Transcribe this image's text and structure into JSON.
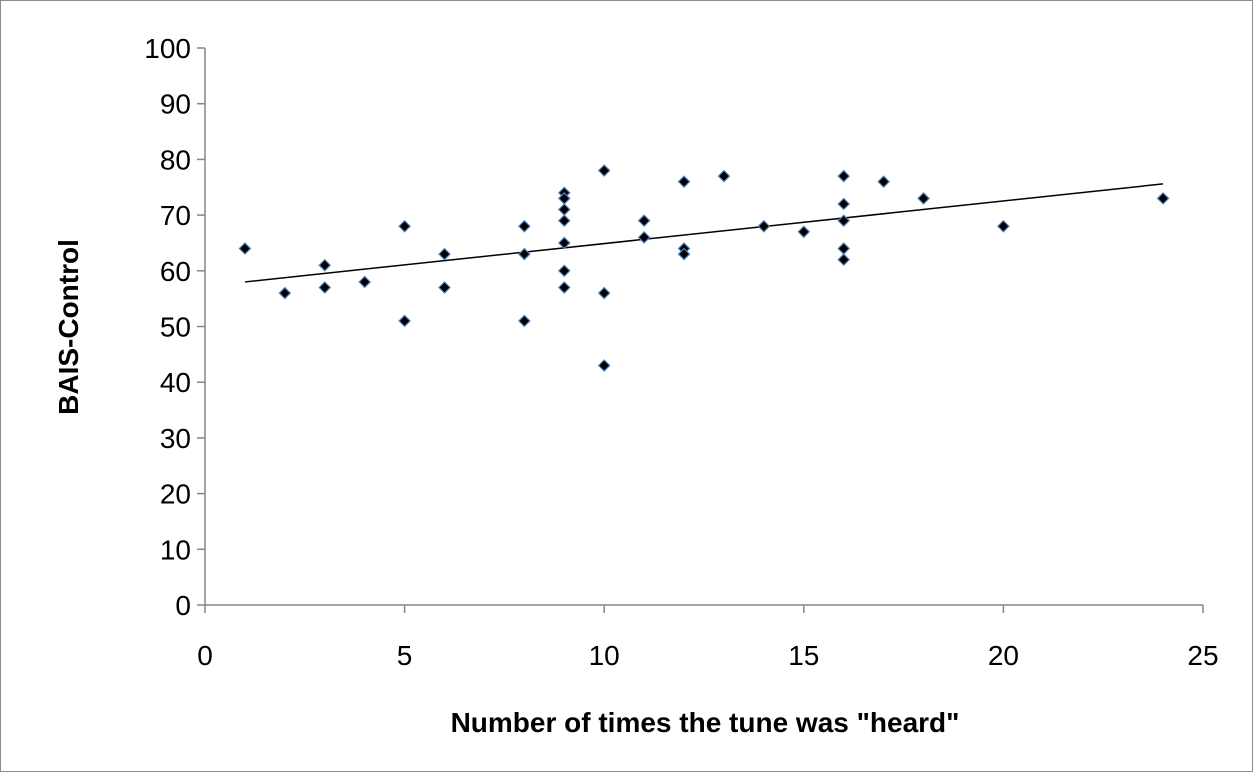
{
  "chart_data": {
    "type": "scatter",
    "xlabel": "Number of times the tune was \"heard\"",
    "ylabel": "BAIS-Control",
    "xlim": [
      0,
      25
    ],
    "ylim": [
      0,
      100
    ],
    "xticks": [
      0,
      5,
      10,
      15,
      20,
      25
    ],
    "yticks": [
      0,
      10,
      20,
      30,
      40,
      50,
      60,
      70,
      80,
      90,
      100
    ],
    "grid": false,
    "legend": "none",
    "marker": "diamond",
    "marker_color": "#000000",
    "marker_edge_color": "#4f81bd",
    "trendline": {
      "type": "linear",
      "x": [
        1,
        24
      ],
      "y": [
        58,
        75.6
      ],
      "color": "#000000"
    },
    "points": [
      {
        "x": 1,
        "y": 64
      },
      {
        "x": 2,
        "y": 56
      },
      {
        "x": 3,
        "y": 61
      },
      {
        "x": 3,
        "y": 57
      },
      {
        "x": 4,
        "y": 58
      },
      {
        "x": 5,
        "y": 68
      },
      {
        "x": 5,
        "y": 51
      },
      {
        "x": 6,
        "y": 63
      },
      {
        "x": 6,
        "y": 57
      },
      {
        "x": 8,
        "y": 68
      },
      {
        "x": 8,
        "y": 63
      },
      {
        "x": 8,
        "y": 51
      },
      {
        "x": 9,
        "y": 74
      },
      {
        "x": 9,
        "y": 73
      },
      {
        "x": 9,
        "y": 71
      },
      {
        "x": 9,
        "y": 69
      },
      {
        "x": 9,
        "y": 65
      },
      {
        "x": 9,
        "y": 60
      },
      {
        "x": 9,
        "y": 57
      },
      {
        "x": 10,
        "y": 78
      },
      {
        "x": 10,
        "y": 56
      },
      {
        "x": 10,
        "y": 43
      },
      {
        "x": 11,
        "y": 69
      },
      {
        "x": 11,
        "y": 66
      },
      {
        "x": 12,
        "y": 76
      },
      {
        "x": 12,
        "y": 64
      },
      {
        "x": 12,
        "y": 63
      },
      {
        "x": 13,
        "y": 77
      },
      {
        "x": 14,
        "y": 68
      },
      {
        "x": 15,
        "y": 67
      },
      {
        "x": 16,
        "y": 77
      },
      {
        "x": 16,
        "y": 72
      },
      {
        "x": 16,
        "y": 69
      },
      {
        "x": 16,
        "y": 64
      },
      {
        "x": 16,
        "y": 62
      },
      {
        "x": 17,
        "y": 76
      },
      {
        "x": 18,
        "y": 73
      },
      {
        "x": 20,
        "y": 68
      },
      {
        "x": 24,
        "y": 73
      }
    ]
  }
}
